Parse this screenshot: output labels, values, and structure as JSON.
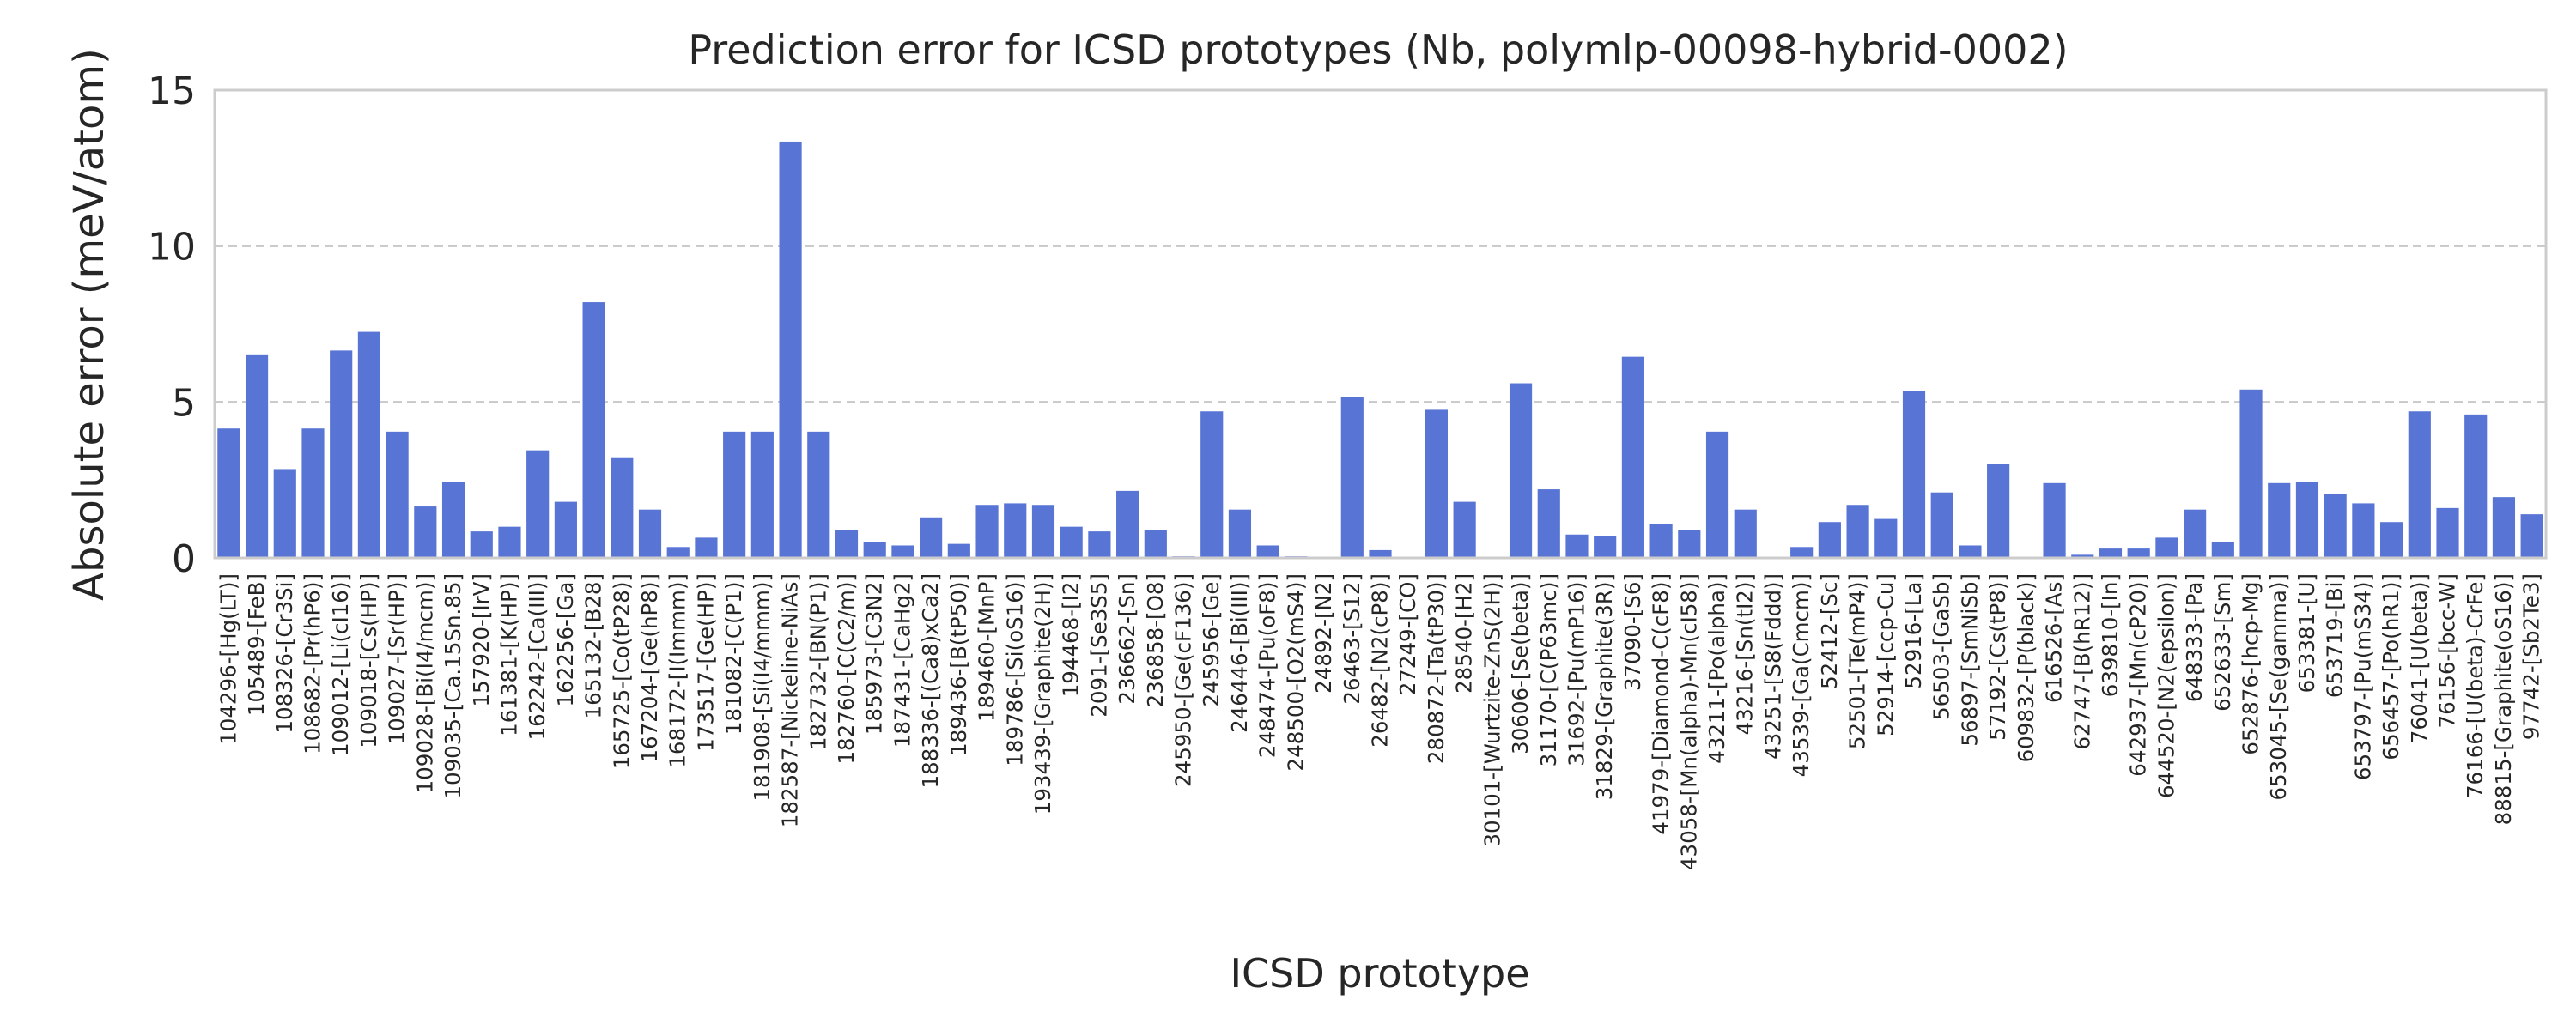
{
  "chart_data": {
    "type": "bar",
    "title": "Prediction error for ICSD prototypes (Nb, polymlp-00098-hybrid-0002)",
    "xlabel": "ICSD prototype",
    "ylabel": "Absolute error (meV/atom)",
    "ylim": [
      0,
      15
    ],
    "yticks": [
      "0",
      "5",
      "10",
      "15"
    ],
    "grid": "horizontal dashed",
    "bar_color": "#5875d6",
    "categories": [
      "104296-[Hg(LT)]",
      "105489-[FeB]",
      "108326-[Cr3Si]",
      "108682-[Pr(hP6)]",
      "109012-[Li(cI16)]",
      "109018-[Cs(HP)]",
      "109027-[Sr(HP)]",
      "109028-[Bi(I4/mcm)]",
      "109035-[Ca.15Sn.85]",
      "157920-[IrV]",
      "161381-[K(HP)]",
      "162242-[Ca(III)]",
      "162256-[Ga]",
      "165132-[B28]",
      "165725-[Co(tP28)]",
      "167204-[Ge(hP8)]",
      "168172-[I(Immm)]",
      "173517-[Ge(HP)]",
      "181082-[C(P1)]",
      "181908-[Si(I4/mmm)]",
      "182587-[Nickeline-NiAs]",
      "182732-[BN(P1)]",
      "182760-[C(C2/m)]",
      "185973-[C3N2]",
      "187431-[CaHg2]",
      "188336-[(Ca8)xCa2]",
      "189436-[B(tP50)]",
      "189460-[MnP]",
      "189786-[Si(oS16)]",
      "193439-[Graphite(2H)]",
      "194468-[I2]",
      "2091-[Se3S5]",
      "236662-[Sn]",
      "236858-[O8]",
      "245950-[Ge(cF136)]",
      "245956-[Ge]",
      "246446-[Bi(III)]",
      "248474-[Pu(oF8)]",
      "248500-[O2(mS4)]",
      "24892-[N2]",
      "26463-[S12]",
      "26482-[N2(cP8)]",
      "27249-[CO]",
      "280872-[Ta(tP30)]",
      "28540-[H2]",
      "30101-[Wurtzite-ZnS(2H)]",
      "30606-[Se(beta)]",
      "31170-[C(P63mc)]",
      "31692-[Pu(mP16)]",
      "31829-[Graphite(3R)]",
      "37090-[S6]",
      "41979-[Diamond-C(cF8)]",
      "43058-[Mn(alpha)-Mn(cI58)]",
      "43211-[Po(alpha)]",
      "43216-[Sn(tI2)]",
      "43251-[S8(Fddd)]",
      "43539-[Ga(Cmcm)]",
      "52412-[Sc]",
      "52501-[Te(mP4)]",
      "52914-[ccp-Cu]",
      "52916-[La]",
      "56503-[GaSb]",
      "56897-[SmNiSb]",
      "57192-[Cs(tP8)]",
      "609832-[P(black)]",
      "616526-[As]",
      "62747-[B(hR12)]",
      "639810-[In]",
      "642937-[Mn(cP20)]",
      "644520-[N2(epsilon)]",
      "648333-[Pa]",
      "652633-[Sm]",
      "652876-[hcp-Mg]",
      "653045-[Se(gamma)]",
      "653381-[U]",
      "653719-[Bi]",
      "653797-[Pu(mS34)]",
      "656457-[Po(hR1)]",
      "76041-[U(beta)]",
      "76156-[bcc-W]",
      "76166-[U(beta)-CrFe]",
      "88815-[Graphite(oS16)]",
      "97742-[Sb2Te3]"
    ],
    "values": [
      4.15,
      6.5,
      2.85,
      4.15,
      6.65,
      7.25,
      4.05,
      1.65,
      2.45,
      0.85,
      1.0,
      3.45,
      1.8,
      8.2,
      3.2,
      1.55,
      0.35,
      0.65,
      4.05,
      4.05,
      13.35,
      4.05,
      0.9,
      0.5,
      0.4,
      1.3,
      0.45,
      1.7,
      1.75,
      1.7,
      1.0,
      0.85,
      2.15,
      0.9,
      0.05,
      4.7,
      1.55,
      0.4,
      0.05,
      0.02,
      5.15,
      0.25,
      0.02,
      4.75,
      1.8,
      0.02,
      5.6,
      2.2,
      0.75,
      0.7,
      6.45,
      1.1,
      0.9,
      4.05,
      1.55,
      0.02,
      0.35,
      1.15,
      1.7,
      1.25,
      5.35,
      2.1,
      0.4,
      3.0,
      0.02,
      2.4,
      0.1,
      0.3,
      0.3,
      0.65,
      1.55,
      0.5,
      5.4,
      2.4,
      2.45,
      2.05,
      1.75,
      1.15,
      4.7,
      1.6,
      4.6,
      1.95,
      1.4
    ]
  }
}
